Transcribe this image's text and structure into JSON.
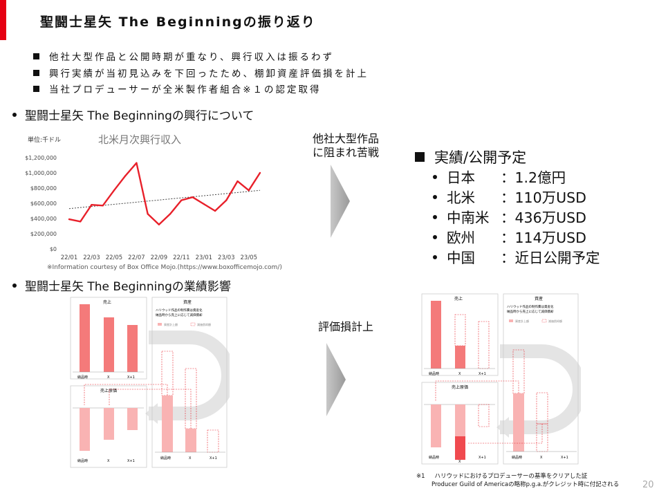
{
  "title": "聖闘士星矢 The Beginningの振り返り",
  "bullets": [
    "他社大型作品と公開時期が重なり、興行収入は振るわず",
    "興行実績が当初見込みを下回ったため、棚卸資産評価損を計上",
    "当社プロデューサーが全米製作者組合※１の認定取得"
  ],
  "section1": "聖闘士星矢 The Beginningの興行について",
  "section2": "聖闘士星矢 The Beginningの業績影響",
  "arrow1_text": [
    "他社大型作品",
    "に阻まれ苦戦"
  ],
  "arrow2_text": "評価損計上",
  "performance": {
    "heading": "実績/公開予定",
    "items": [
      {
        "region": "日本",
        "value": "：1.2億円"
      },
      {
        "region": "北米",
        "value": "：110万USD"
      },
      {
        "region": "中南米",
        "value": "：436万USD"
      },
      {
        "region": "欧州",
        "value": "：114万USD"
      },
      {
        "region": "中国",
        "value": "：近日公開予定"
      }
    ]
  },
  "chart_data": {
    "type": "line",
    "title": "北米月次興行収入",
    "unit_label": "単位:千ドル",
    "ylim": [
      0,
      1200000
    ],
    "y_ticks": [
      "$0",
      "$200,000",
      "$400,000",
      "$600,000",
      "$800,000",
      "$1,000,000",
      "$1,200,000"
    ],
    "x_tick_labels": [
      "22/01",
      "22/03",
      "22/05",
      "22/07",
      "22/09",
      "22/11",
      "23/01",
      "23/03",
      "23/05"
    ],
    "x": [
      "22/01",
      "22/02",
      "22/03",
      "22/04",
      "22/05",
      "22/06",
      "22/07",
      "22/08",
      "22/09",
      "22/10",
      "22/11",
      "22/12",
      "23/01",
      "23/02",
      "23/03",
      "23/04",
      "23/05",
      "23/06"
    ],
    "series": [
      {
        "values": [
          390000,
          360000,
          580000,
          570000,
          770000,
          960000,
          1130000,
          460000,
          320000,
          460000,
          640000,
          680000,
          590000,
          500000,
          640000,
          890000,
          770000,
          1000000
        ]
      }
    ],
    "trendline": {
      "start": 530000,
      "end": 770000
    },
    "source": "※Information courtesy of Box Office Mojo.(https://www.boxofficemojo.com/)",
    "colors": {
      "series": "#e8202a",
      "trend": "#444444"
    }
  },
  "diagrams": [
    {
      "labels": {
        "sales": "売上",
        "asset": "資産",
        "cogs": "売上原価"
      },
      "notes": [
        "ハリウッド作品の制作費は資産化",
        "納品時から売上に応じて減価償却"
      ],
      "legend": [
        "資産計上額",
        "減価償却額"
      ],
      "x_labels": [
        "納品時",
        "X",
        "X+1"
      ]
    },
    {
      "labels": {
        "sales": "売上",
        "asset": "資産",
        "cogs": "売上原価"
      },
      "notes": [
        "ハリウッド作品の制作費は資産化",
        "納品時から売上に応じて減価償却"
      ],
      "legend": [
        "資産計上額",
        "減価償却額"
      ],
      "x_labels": [
        "納品時",
        "X",
        "X+1"
      ]
    }
  ],
  "footnote": {
    "mark": "※1",
    "line1": "ハリウッドにおけるプロデューサーの基準をクリアした証",
    "line2": "Producer Guild of Americaの略称p.g.a.がクレジット時に付記される"
  },
  "page_number": "20",
  "colors": {
    "accent": "#e60012",
    "bar": "#f47a7a",
    "bar_light": "#f9b3b3",
    "bar_dark": "#f04a4f"
  }
}
